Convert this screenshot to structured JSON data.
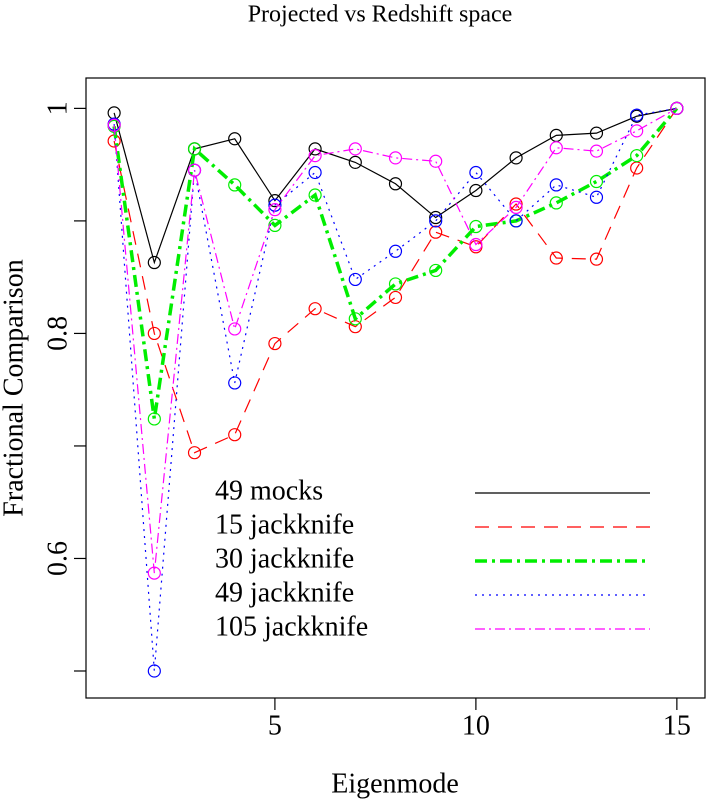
{
  "chart_data": {
    "type": "line",
    "title": "Projected vs Redshift space",
    "x_label": "Eigenmode",
    "y_label": "Fractional Comparison",
    "x": [
      1,
      2,
      3,
      4,
      5,
      6,
      7,
      8,
      9,
      10,
      11,
      12,
      13,
      14,
      15
    ],
    "xlim": [
      0.3,
      15.7
    ],
    "xticks": [
      5,
      10,
      15
    ],
    "ylim": [
      0.476,
      1.027
    ],
    "yticks": [
      0.6,
      0.8,
      1
    ],
    "minor_yticks": [
      0.5,
      0.7,
      0.9
    ],
    "markers": "open-circle",
    "series": [
      {
        "name": "49 mocks",
        "color": "#000000",
        "dash": "none",
        "width": 1.2,
        "values": [
          0.996,
          0.863,
          0.964,
          0.973,
          0.918,
          0.964,
          0.952,
          0.933,
          0.903,
          0.927,
          0.956,
          0.976,
          0.978,
          0.993,
          1
        ]
      },
      {
        "name": "15 jackknife",
        "color": "#ff0000",
        "dash": "14,9",
        "width": 1.2,
        "values": [
          0.971,
          0.8,
          0.694,
          0.71,
          0.791,
          0.822,
          0.806,
          0.832,
          0.89,
          0.877,
          0.915,
          0.867,
          0.866,
          0.947,
          1
        ]
      },
      {
        "name": "30 jackknife",
        "color": "#00ee00",
        "dash": "12,5,3,5",
        "width": 3.5,
        "values": [
          0.984,
          0.724,
          0.964,
          0.932,
          0.896,
          0.923,
          0.813,
          0.844,
          0.856,
          0.895,
          0.9,
          0.916,
          0.935,
          0.958,
          1
        ]
      },
      {
        "name": "49 jackknife",
        "color": "#0000ff",
        "dash": "2,5",
        "width": 1.2,
        "values": [
          0.986,
          0.5,
          0.945,
          0.756,
          0.914,
          0.943,
          0.848,
          0.873,
          0.9,
          0.943,
          0.9,
          0.932,
          0.921,
          0.994,
          1
        ]
      },
      {
        "name": "105 jackknife",
        "color": "#ff00ff",
        "dash": "10,4,2,4",
        "width": 1.2,
        "values": [
          0.985,
          0.587,
          0.945,
          0.804,
          0.91,
          0.958,
          0.964,
          0.956,
          0.953,
          0.879,
          0.912,
          0.965,
          0.962,
          0.98,
          1
        ]
      }
    ]
  }
}
